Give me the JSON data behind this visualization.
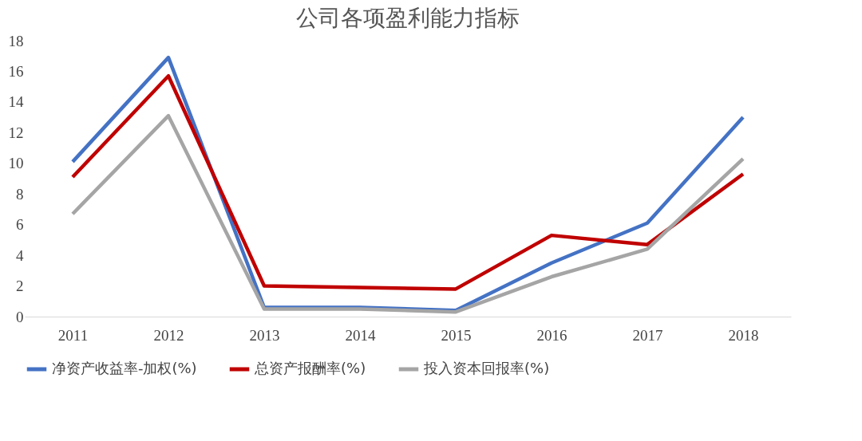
{
  "chart_data": {
    "type": "line",
    "title": "公司各项盈利能力指标",
    "categories": [
      "2011",
      "2012",
      "2013",
      "2014",
      "2015",
      "2016",
      "2017",
      "2018"
    ],
    "series": [
      {
        "name": "净资产收益率-加权(%)",
        "color": "#4472c4",
        "values": [
          10.1,
          16.9,
          0.6,
          0.6,
          0.4,
          3.5,
          6.1,
          13.0
        ]
      },
      {
        "name": "总资产报酬率(%)",
        "color": "#c00000",
        "values": [
          9.1,
          15.7,
          2.0,
          1.9,
          1.8,
          5.3,
          4.7,
          9.3
        ]
      },
      {
        "name": "投入资本回报率(%)",
        "color": "#a5a5a5",
        "values": [
          6.7,
          13.1,
          0.5,
          0.5,
          0.3,
          2.6,
          4.4,
          10.3
        ]
      }
    ],
    "ylim": [
      0,
      18
    ],
    "yticks": [
      0,
      2,
      4,
      6,
      8,
      10,
      12,
      14,
      16,
      18
    ],
    "grid": false,
    "legend": "bottom",
    "marker": "none",
    "line_style": "solid"
  }
}
